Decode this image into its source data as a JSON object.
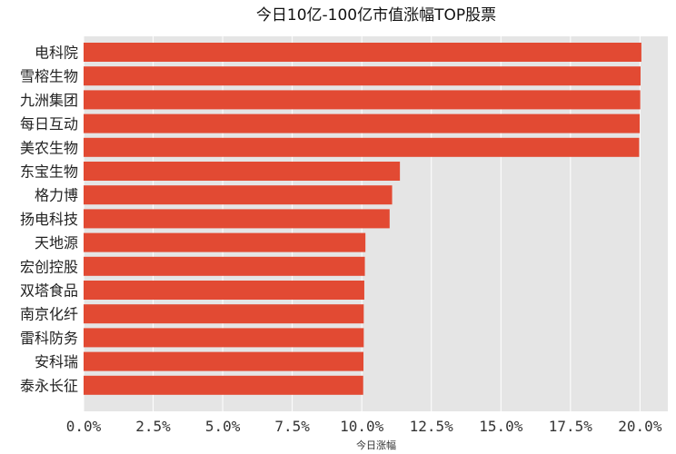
{
  "chart_data": {
    "type": "bar",
    "orientation": "horizontal",
    "title": "今日10亿-100亿市值涨幅TOP股票",
    "xlabel": "今日涨幅",
    "ylabel": "",
    "categories": [
      "电科院",
      "雪榕生物",
      "九洲集团",
      "每日互动",
      "美农生物",
      "东宝生物",
      "格力博",
      "扬电科技",
      "天地源",
      "宏创控股",
      "双塔食品",
      "南京化纤",
      "雷科防务",
      "安科瑞",
      "泰永长征"
    ],
    "values": [
      0.2005,
      0.2002,
      0.2001,
      0.1999,
      0.1997,
      0.1137,
      0.1109,
      0.11,
      0.1013,
      0.1011,
      0.1009,
      0.1007,
      0.1007,
      0.1006,
      0.1005
    ],
    "xlim": [
      0,
      0.21
    ],
    "xticks": [
      0,
      0.025,
      0.05,
      0.075,
      0.1,
      0.125,
      0.15,
      0.175,
      0.2
    ],
    "xtick_labels": [
      "0.0%",
      "2.5%",
      "5.0%",
      "7.5%",
      "10.0%",
      "12.5%",
      "15.0%",
      "17.5%",
      "20.0%"
    ],
    "grid": true,
    "colors": {
      "bar": "#e24a33",
      "plot_bg": "#e5e5e5",
      "grid": "#ffffff"
    }
  }
}
